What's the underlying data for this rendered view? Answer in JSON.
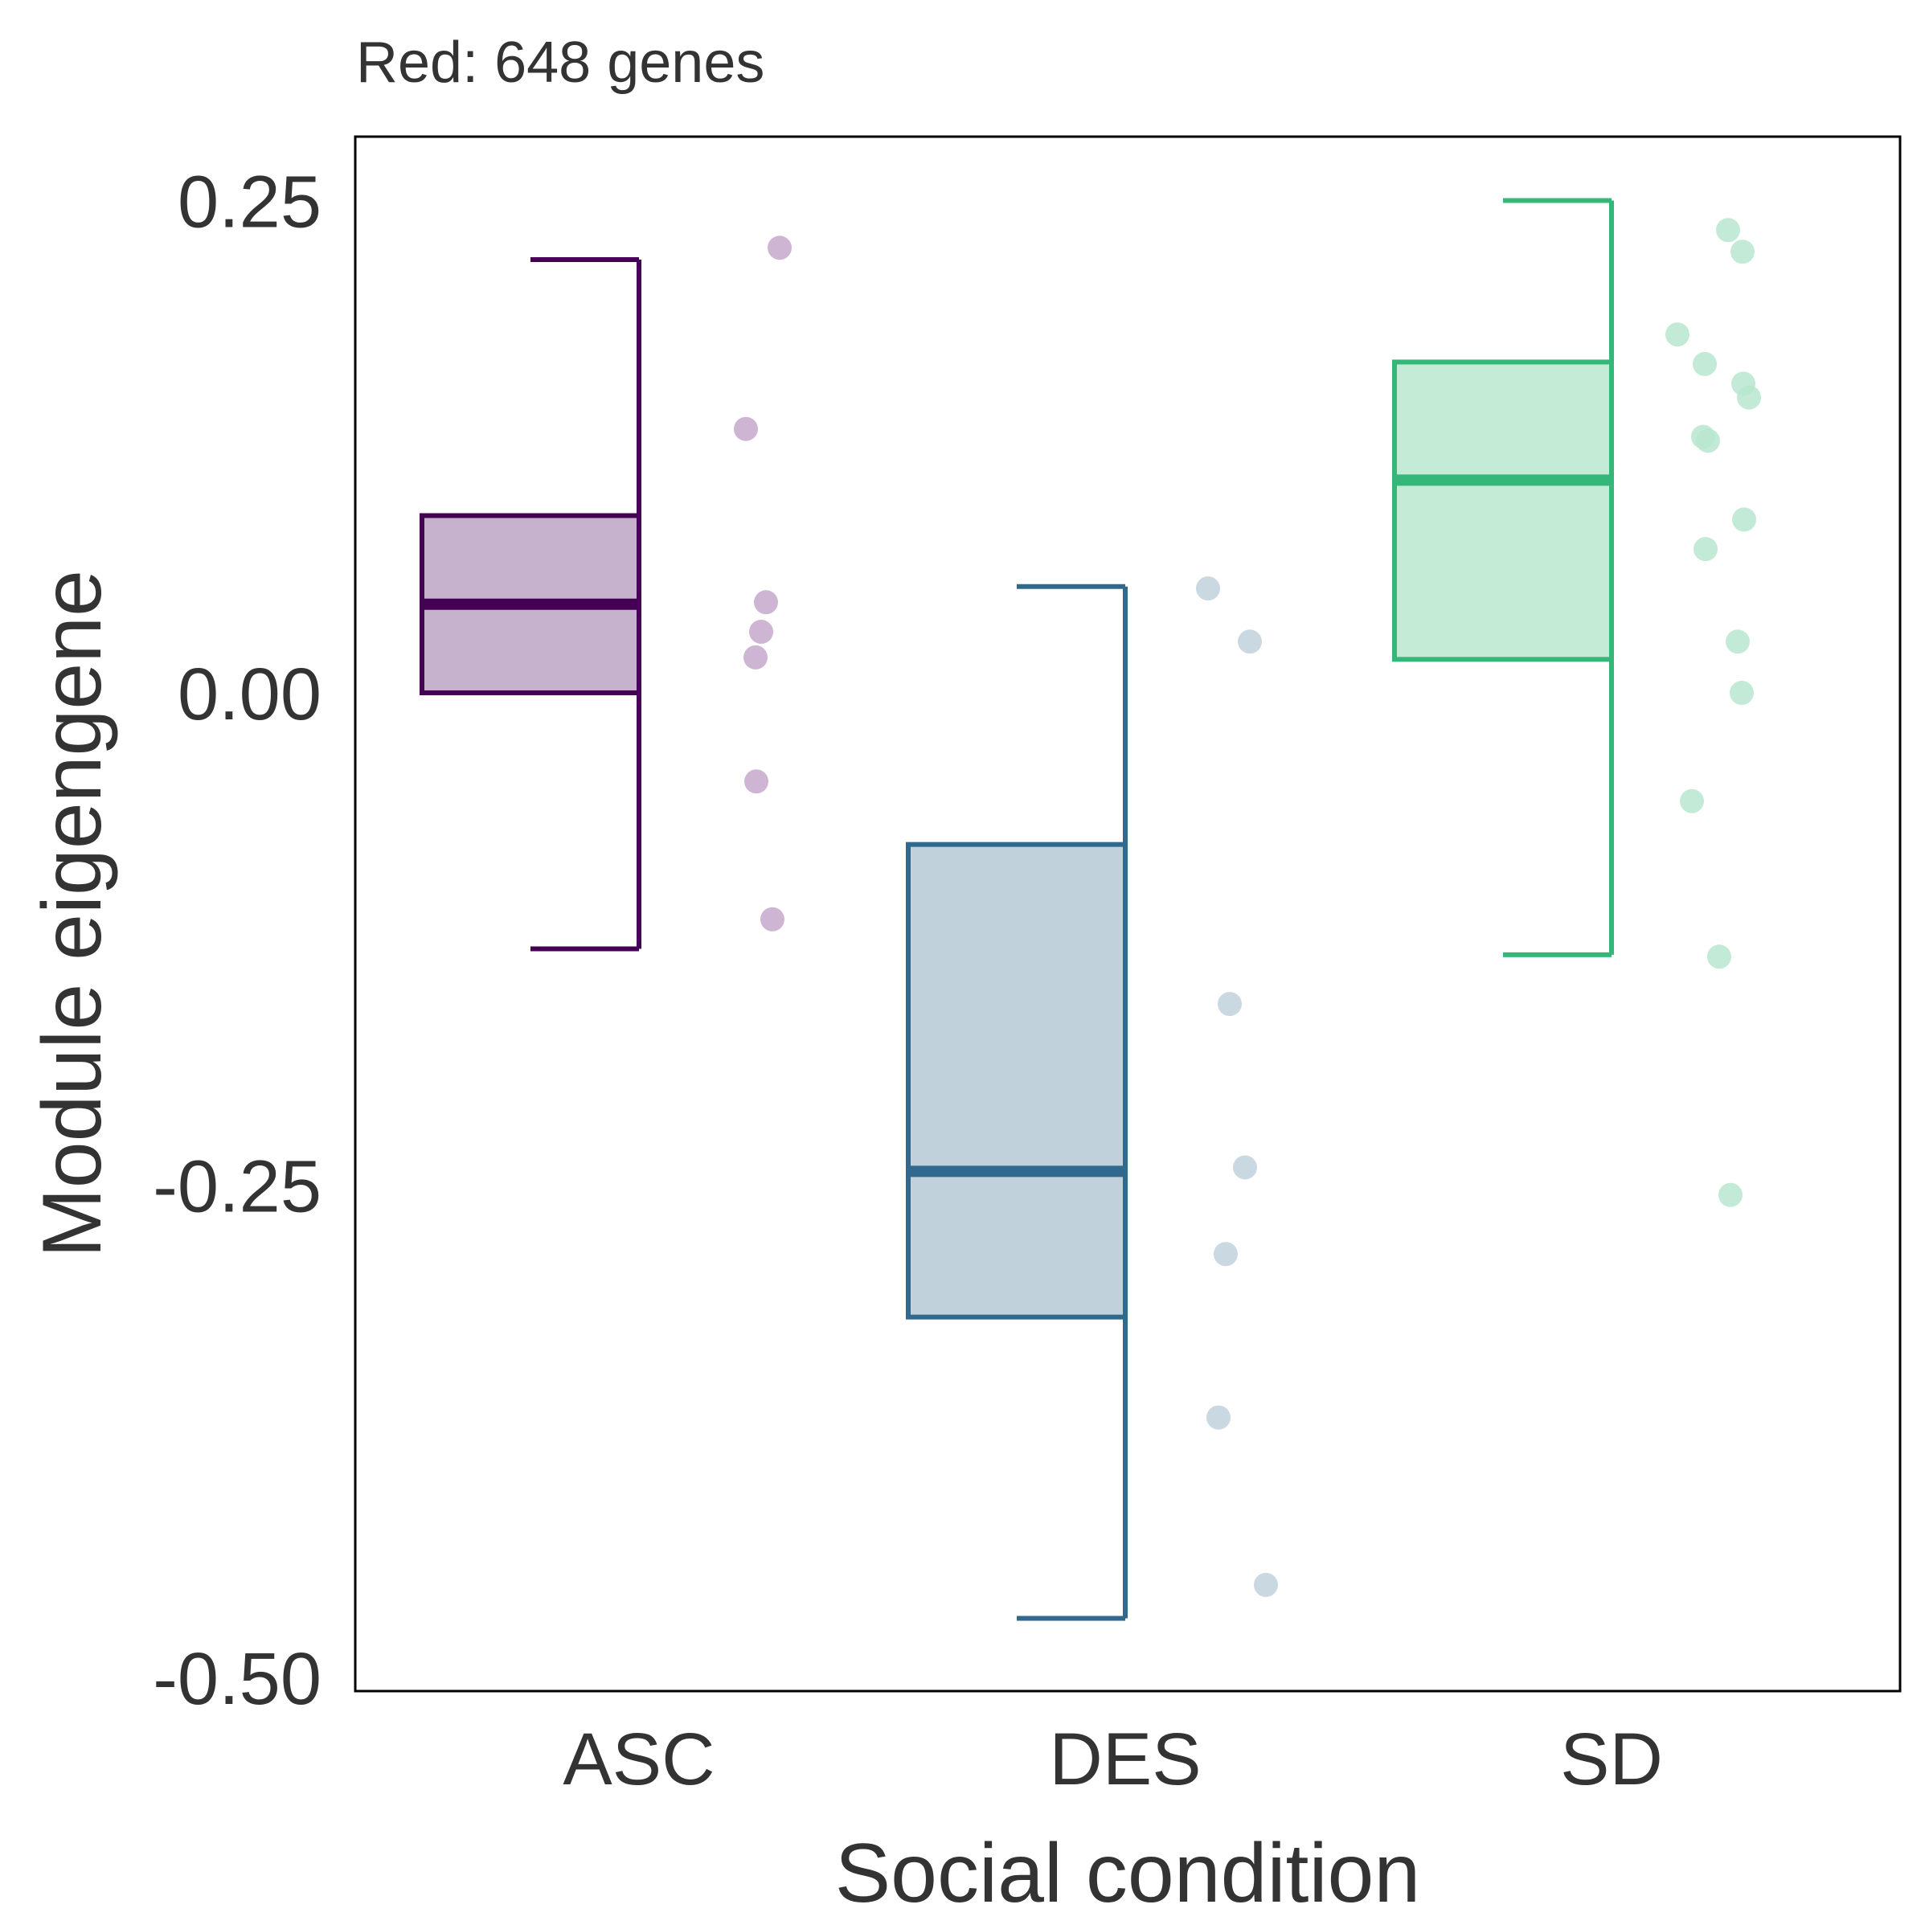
{
  "chart_data": {
    "type": "box",
    "title": "Red: 648 genes",
    "xlabel": "Social condition",
    "ylabel": "Module eigengene",
    "ylim": [
      -0.5,
      0.285
    ],
    "yticks": [
      "0.25",
      "0.00",
      "-0.25",
      "-0.50"
    ],
    "ytick_values": [
      0.25,
      0.0,
      -0.25,
      -0.5
    ],
    "grid": false,
    "categories": [
      "ASC",
      "DES",
      "SD"
    ],
    "series": [
      {
        "colors": {
          "line": "#440154",
          "fill": "#c6b2cc",
          "point": "#c6a8cc"
        },
        "whisker_low": -0.13,
        "q1": 0.0,
        "median": 0.045,
        "q3": 0.09,
        "whisker_high": 0.22,
        "points": [
          0.226,
          0.134,
          0.046,
          0.031,
          0.018,
          -0.045,
          -0.115
        ]
      },
      {
        "colors": {
          "line": "#31688e",
          "fill": "#c1d1dc",
          "point": "#c1d1dc"
        },
        "whisker_low": -0.47,
        "q1": -0.317,
        "median": -0.243,
        "q3": -0.077,
        "whisker_high": 0.054,
        "points": [
          0.053,
          0.026,
          -0.158,
          -0.241,
          -0.285,
          -0.368,
          -0.453
        ]
      },
      {
        "colors": {
          "line": "#35b779",
          "fill": "#c3ebd6",
          "point": "#b9e6cf"
        },
        "whisker_low": -0.133,
        "q1": 0.017,
        "median": 0.108,
        "q3": 0.168,
        "whisker_high": 0.25,
        "points": [
          0.235,
          0.224,
          0.182,
          0.167,
          0.157,
          0.15,
          0.13,
          0.128,
          0.088,
          0.073,
          0.026,
          0.0,
          -0.055,
          -0.134,
          -0.255
        ]
      }
    ]
  }
}
